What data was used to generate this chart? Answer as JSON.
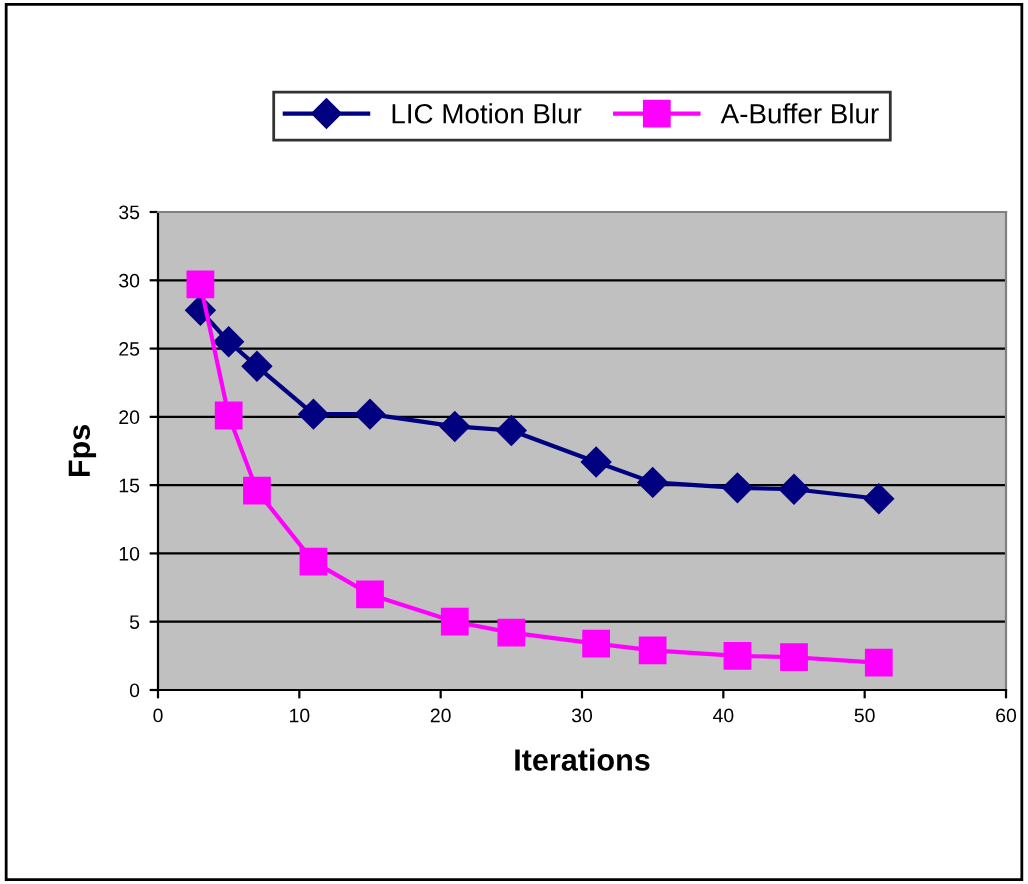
{
  "chart_data": {
    "type": "line",
    "xlabel": "Iterations",
    "ylabel": "Fps",
    "xlim": [
      0,
      60
    ],
    "xticks": [
      0,
      10,
      20,
      30,
      40,
      50,
      60
    ],
    "ylim": [
      0,
      35
    ],
    "yticks": [
      0,
      5,
      10,
      15,
      20,
      25,
      30,
      35
    ],
    "grid": "y",
    "legend": "top",
    "series": [
      {
        "name": "LIC Motion Blur",
        "color": "#000080",
        "marker": "diamond",
        "x": [
          3,
          5,
          7,
          11,
          15,
          21,
          25,
          31,
          35,
          41,
          45,
          51
        ],
        "values": [
          27.8,
          25.5,
          23.7,
          20.2,
          20.2,
          19.3,
          19.0,
          16.7,
          15.2,
          14.8,
          14.7,
          14.0
        ]
      },
      {
        "name": "A-Buffer Blur",
        "color": "#ff00ff",
        "marker": "square",
        "x": [
          3,
          5,
          7,
          11,
          15,
          21,
          25,
          31,
          35,
          41,
          45,
          51
        ],
        "values": [
          29.7,
          20.1,
          14.6,
          9.4,
          7.0,
          5.0,
          4.2,
          3.4,
          2.9,
          2.5,
          2.4,
          2.0
        ]
      }
    ]
  }
}
